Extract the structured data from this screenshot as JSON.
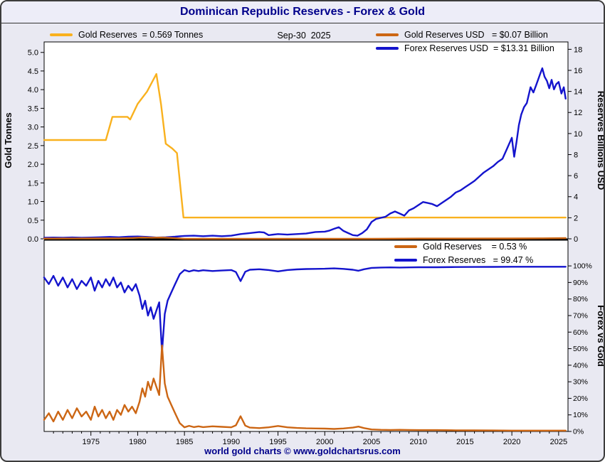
{
  "window": {
    "title": "Dominican Republic Reserves - Forex & Gold"
  },
  "header": {
    "date_label": "Sep-30  2025"
  },
  "footer": {
    "credit": "world gold charts © www.goldchartsrus.com"
  },
  "colors": {
    "gold": "#f9b11e",
    "orange": "#cc6614",
    "blue": "#1414cd",
    "title": "#00008b",
    "panel_bg": "#ffffff",
    "outer_bg": "#e9e9f2"
  },
  "legends": {
    "top_left": {
      "label": "Gold Reserves  = 0.569 Tonnes",
      "color_key": "gold"
    },
    "top_right": [
      {
        "label": "Gold Reserves USD   = $0.07 Billion",
        "color_key": "orange"
      },
      {
        "label": "Forex Reserves USD  = $13.31 Billion",
        "color_key": "blue"
      }
    ],
    "bottom": [
      {
        "label": "Gold Reserves    = 0.53 %",
        "color_key": "orange"
      },
      {
        "label": "Forex Reserves   = 99.47 %",
        "color_key": "blue"
      }
    ]
  },
  "chart_data": [
    {
      "type": "line",
      "panel": "top",
      "title": "Dominican Republic Reserves - Forex & Gold",
      "as_of": "Sep-30 2025",
      "grid": false,
      "x_range": [
        1970,
        2026
      ],
      "x_ticks": [
        {
          "v": 1975,
          "t": "1975"
        },
        {
          "v": 1980,
          "t": "1980"
        },
        {
          "v": 1985,
          "t": "1985"
        },
        {
          "v": 1990,
          "t": "1990"
        },
        {
          "v": 1995,
          "t": "1995"
        },
        {
          "v": 2000,
          "t": "2000"
        },
        {
          "v": 2005,
          "t": "2005"
        },
        {
          "v": 2010,
          "t": "2010"
        },
        {
          "v": 2015,
          "t": "2015"
        },
        {
          "v": 2020,
          "t": "2020"
        },
        {
          "v": 2025,
          "t": "2025"
        }
      ],
      "left_axis": {
        "label": "Gold Tonnes",
        "range": [
          0,
          5.28
        ],
        "ticks": [
          {
            "v": 0,
            "t": "0.0"
          },
          {
            "v": 0.5,
            "t": "0.5"
          },
          {
            "v": 1,
            "t": "1.0"
          },
          {
            "v": 1.5,
            "t": "1.5"
          },
          {
            "v": 2,
            "t": "2.0"
          },
          {
            "v": 2.5,
            "t": "2.5"
          },
          {
            "v": 3,
            "t": "3.0"
          },
          {
            "v": 3.5,
            "t": "3.5"
          },
          {
            "v": 4,
            "t": "4.0"
          },
          {
            "v": 4.5,
            "t": "4.5"
          },
          {
            "v": 5,
            "t": "5.0"
          }
        ]
      },
      "right_axis": {
        "label": "Reserves Billions USD",
        "range": [
          0,
          18.7
        ],
        "ticks": [
          {
            "v": 0,
            "t": "0"
          },
          {
            "v": 2,
            "t": "2"
          },
          {
            "v": 4,
            "t": "4"
          },
          {
            "v": 6,
            "t": "6"
          },
          {
            "v": 8,
            "t": "8"
          },
          {
            "v": 10,
            "t": "10"
          },
          {
            "v": 12,
            "t": "12"
          },
          {
            "v": 14,
            "t": "14"
          },
          {
            "v": 16,
            "t": "16"
          },
          {
            "v": 18,
            "t": "18"
          }
        ]
      },
      "series": [
        {
          "id": "gold-tonnes-line",
          "name": "Gold Reserves (Tonnes)",
          "axis": "left",
          "color_key": "gold",
          "current": "0.569 Tonnes",
          "points": [
            [
              1970,
              2.65
            ],
            [
              1976.6,
              2.65
            ],
            [
              1977.3,
              3.27
            ],
            [
              1978.9,
              3.27
            ],
            [
              1979.2,
              3.2
            ],
            [
              1980,
              3.62
            ],
            [
              1981,
              3.95
            ],
            [
              1982,
              4.42
            ],
            [
              1982.5,
              3.6
            ],
            [
              1983,
              2.55
            ],
            [
              1983.7,
              2.42
            ],
            [
              1984.2,
              2.3
            ],
            [
              1984.9,
              0.57
            ],
            [
              2025.75,
              0.57
            ]
          ]
        },
        {
          "id": "forex-usd-line",
          "name": "Forex Reserves USD",
          "axis": "right",
          "color_key": "blue",
          "current": "$13.31 Billion",
          "points": [
            [
              1970,
              0.1
            ],
            [
              1971,
              0.12
            ],
            [
              1972,
              0.1
            ],
            [
              1973,
              0.13
            ],
            [
              1974,
              0.1
            ],
            [
              1975,
              0.12
            ],
            [
              1976,
              0.15
            ],
            [
              1977,
              0.18
            ],
            [
              1978,
              0.15
            ],
            [
              1979,
              0.2
            ],
            [
              1980,
              0.22
            ],
            [
              1981,
              0.18
            ],
            [
              1982,
              0.12
            ],
            [
              1983,
              0.15
            ],
            [
              1984,
              0.2
            ],
            [
              1985,
              0.28
            ],
            [
              1986,
              0.3
            ],
            [
              1987,
              0.25
            ],
            [
              1988,
              0.3
            ],
            [
              1989,
              0.25
            ],
            [
              1990,
              0.3
            ],
            [
              1991,
              0.45
            ],
            [
              1992,
              0.55
            ],
            [
              1993,
              0.65
            ],
            [
              1993.5,
              0.6
            ],
            [
              1994,
              0.35
            ],
            [
              1995,
              0.45
            ],
            [
              1996,
              0.4
            ],
            [
              1997,
              0.45
            ],
            [
              1998,
              0.5
            ],
            [
              1999,
              0.65
            ],
            [
              2000,
              0.68
            ],
            [
              2000.5,
              0.78
            ],
            [
              2001,
              0.95
            ],
            [
              2001.5,
              1.1
            ],
            [
              2002,
              0.75
            ],
            [
              2002.5,
              0.55
            ],
            [
              2003,
              0.35
            ],
            [
              2003.5,
              0.3
            ],
            [
              2004,
              0.55
            ],
            [
              2004.5,
              0.9
            ],
            [
              2005,
              1.6
            ],
            [
              2005.5,
              1.9
            ],
            [
              2006,
              2.0
            ],
            [
              2006.5,
              2.1
            ],
            [
              2007,
              2.4
            ],
            [
              2007.5,
              2.6
            ],
            [
              2008,
              2.4
            ],
            [
              2008.5,
              2.2
            ],
            [
              2009,
              2.7
            ],
            [
              2009.5,
              2.9
            ],
            [
              2010,
              3.2
            ],
            [
              2010.5,
              3.5
            ],
            [
              2011,
              3.4
            ],
            [
              2011.5,
              3.3
            ],
            [
              2012,
              3.1
            ],
            [
              2012.5,
              3.4
            ],
            [
              2013,
              3.7
            ],
            [
              2013.5,
              4.0
            ],
            [
              2014,
              4.4
            ],
            [
              2014.5,
              4.6
            ],
            [
              2015,
              4.9
            ],
            [
              2015.5,
              5.2
            ],
            [
              2016,
              5.5
            ],
            [
              2016.5,
              5.9
            ],
            [
              2017,
              6.3
            ],
            [
              2017.5,
              6.6
            ],
            [
              2018,
              6.9
            ],
            [
              2018.5,
              7.3
            ],
            [
              2019,
              7.6
            ],
            [
              2019.5,
              8.6
            ],
            [
              2020,
              9.6
            ],
            [
              2020.25,
              7.8
            ],
            [
              2020.5,
              9.2
            ],
            [
              2020.75,
              10.8
            ],
            [
              2021,
              11.8
            ],
            [
              2021.3,
              12.5
            ],
            [
              2021.6,
              12.9
            ],
            [
              2022,
              14.4
            ],
            [
              2022.3,
              13.9
            ],
            [
              2022.6,
              14.6
            ],
            [
              2023,
              15.6
            ],
            [
              2023.25,
              16.2
            ],
            [
              2023.5,
              15.4
            ],
            [
              2023.75,
              15.0
            ],
            [
              2024,
              14.3
            ],
            [
              2024.25,
              15.1
            ],
            [
              2024.5,
              14.2
            ],
            [
              2024.75,
              14.7
            ],
            [
              2025,
              14.9
            ],
            [
              2025.3,
              13.8
            ],
            [
              2025.55,
              14.4
            ],
            [
              2025.75,
              13.31
            ]
          ]
        },
        {
          "id": "gold-usd-line",
          "name": "Gold Reserves USD",
          "axis": "right",
          "color_key": "orange",
          "current": "$0.07 Billion",
          "points": [
            [
              1970,
              0.03
            ],
            [
              1974,
              0.04
            ],
            [
              1978,
              0.05
            ],
            [
              1979.5,
              0.08
            ],
            [
              1980.5,
              0.13
            ],
            [
              1981.5,
              0.11
            ],
            [
              1982.5,
              0.12
            ],
            [
              1983.5,
              0.09
            ],
            [
              1984.5,
              0.03
            ],
            [
              1985,
              0.01
            ],
            [
              1990,
              0.01
            ],
            [
              1995,
              0.01
            ],
            [
              2000,
              0.01
            ],
            [
              2005,
              0.01
            ],
            [
              2010,
              0.025
            ],
            [
              2015,
              0.025
            ],
            [
              2020,
              0.035
            ],
            [
              2023,
              0.045
            ],
            [
              2025.75,
              0.07
            ]
          ]
        }
      ]
    },
    {
      "type": "line",
      "panel": "bottom",
      "grid": false,
      "right_axis": {
        "label": "Forex vs Gold",
        "range": [
          0,
          115.5
        ],
        "ticks": [
          {
            "v": 0,
            "t": "0%"
          },
          {
            "v": 10,
            "t": "10%"
          },
          {
            "v": 20,
            "t": "20%"
          },
          {
            "v": 30,
            "t": "30%"
          },
          {
            "v": 40,
            "t": "40%"
          },
          {
            "v": 50,
            "t": "50%"
          },
          {
            "v": 60,
            "t": "60%"
          },
          {
            "v": 70,
            "t": "70%"
          },
          {
            "v": 80,
            "t": "80%"
          },
          {
            "v": 90,
            "t": "90%"
          },
          {
            "v": 100,
            "t": "100%"
          }
        ]
      },
      "x": [
        1970,
        1970.5,
        1971,
        1971.5,
        1972,
        1972.5,
        1973,
        1973.5,
        1974,
        1974.5,
        1975,
        1975.4,
        1975.8,
        1976.2,
        1976.6,
        1977,
        1977.4,
        1977.8,
        1978.2,
        1978.6,
        1979,
        1979.4,
        1979.8,
        1980.2,
        1980.5,
        1980.8,
        1981.1,
        1981.4,
        1981.7,
        1982,
        1982.3,
        1982.6,
        1982.9,
        1983.2,
        1983.6,
        1984,
        1984.5,
        1985,
        1985.5,
        1986,
        1986.5,
        1987,
        1988,
        1989,
        1990,
        1990.5,
        1991,
        1991.5,
        1992,
        1993,
        1994,
        1995,
        1996,
        1997,
        1998,
        1999,
        2000,
        2001,
        2002,
        2003,
        2003.6,
        2004.2,
        2005,
        2006,
        2007,
        2008,
        2009,
        2010,
        2012,
        2014,
        2016,
        2018,
        2020,
        2022,
        2024,
        2025.75
      ],
      "series": [
        {
          "id": "forex-pct-line",
          "name": "Forex Reserves %",
          "color_key": "blue",
          "current": "99.47 %",
          "values": [
            93,
            89,
            94,
            88,
            93,
            87,
            92,
            86,
            91,
            88,
            93,
            85,
            91,
            87,
            92,
            88,
            93,
            87,
            90,
            84,
            88,
            85,
            89,
            82,
            74,
            79,
            70,
            75,
            68,
            73,
            78,
            48,
            71,
            79,
            84,
            89,
            95,
            97.5,
            96.6,
            97.4,
            96.9,
            97.4,
            96.9,
            97.2,
            97.5,
            96.3,
            90.8,
            96.5,
            97.7,
            98,
            97.5,
            96.7,
            97.5,
            97.9,
            98.1,
            98.2,
            98.3,
            98.5,
            98.2,
            97.7,
            97.1,
            98,
            98.8,
            99,
            99.1,
            99,
            99.1,
            99.2,
            99.2,
            99.3,
            99.35,
            99.4,
            99.5,
            99.5,
            99.5,
            99.47
          ]
        },
        {
          "id": "gold-pct-line",
          "name": "Gold Reserves %",
          "color_key": "orange",
          "current": "0.53 %",
          "values": [
            7,
            11,
            6,
            12,
            7,
            13,
            8,
            14,
            9,
            12,
            7,
            15,
            9,
            13,
            8,
            12,
            7,
            13,
            10,
            16,
            12,
            15,
            11,
            18,
            26,
            21,
            30,
            25,
            32,
            27,
            22,
            52,
            29,
            21,
            16,
            11,
            5,
            2.5,
            3.4,
            2.6,
            3.1,
            2.6,
            3.1,
            2.8,
            2.5,
            3.7,
            9.2,
            3.5,
            2.3,
            2,
            2.5,
            3.3,
            2.5,
            2.1,
            1.9,
            1.8,
            1.7,
            1.5,
            1.8,
            2.3,
            2.9,
            2,
            1.2,
            1,
            0.9,
            1,
            0.9,
            0.8,
            0.8,
            0.7,
            0.65,
            0.6,
            0.5,
            0.5,
            0.5,
            0.53
          ]
        }
      ]
    }
  ]
}
